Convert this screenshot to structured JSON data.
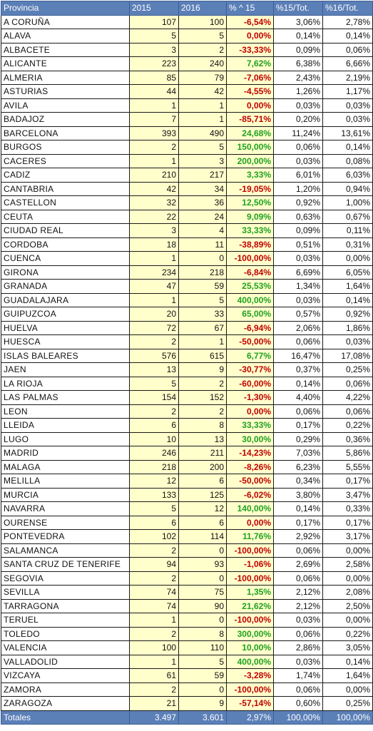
{
  "headers": [
    "Provincia",
    "2015",
    "2016",
    "% ^ 15",
    "%15/Tot.",
    "%16/Tot."
  ],
  "rows": [
    {
      "p": "A CORUÑA",
      "y15": "107",
      "y16": "100",
      "pct": "-6,54%",
      "t15": "3,06%",
      "t16": "2,78%",
      "sign": "neg"
    },
    {
      "p": "ALAVA",
      "y15": "5",
      "y16": "5",
      "pct": "0,00%",
      "t15": "0,14%",
      "t16": "0,14%",
      "sign": "neg"
    },
    {
      "p": "ALBACETE",
      "y15": "3",
      "y16": "2",
      "pct": "-33,33%",
      "t15": "0,09%",
      "t16": "0,06%",
      "sign": "neg"
    },
    {
      "p": "ALICANTE",
      "y15": "223",
      "y16": "240",
      "pct": "7,62%",
      "t15": "6,38%",
      "t16": "6,66%",
      "sign": "pos"
    },
    {
      "p": "ALMERIA",
      "y15": "85",
      "y16": "79",
      "pct": "-7,06%",
      "t15": "2,43%",
      "t16": "2,19%",
      "sign": "neg"
    },
    {
      "p": "ASTURIAS",
      "y15": "44",
      "y16": "42",
      "pct": "-4,55%",
      "t15": "1,26%",
      "t16": "1,17%",
      "sign": "neg"
    },
    {
      "p": "AVILA",
      "y15": "1",
      "y16": "1",
      "pct": "0,00%",
      "t15": "0,03%",
      "t16": "0,03%",
      "sign": "neg"
    },
    {
      "p": "BADAJOZ",
      "y15": "7",
      "y16": "1",
      "pct": "-85,71%",
      "t15": "0,20%",
      "t16": "0,03%",
      "sign": "neg"
    },
    {
      "p": "BARCELONA",
      "y15": "393",
      "y16": "490",
      "pct": "24,68%",
      "t15": "11,24%",
      "t16": "13,61%",
      "sign": "pos"
    },
    {
      "p": "BURGOS",
      "y15": "2",
      "y16": "5",
      "pct": "150,00%",
      "t15": "0,06%",
      "t16": "0,14%",
      "sign": "pos"
    },
    {
      "p": "CACERES",
      "y15": "1",
      "y16": "3",
      "pct": "200,00%",
      "t15": "0,03%",
      "t16": "0,08%",
      "sign": "pos"
    },
    {
      "p": "CADIZ",
      "y15": "210",
      "y16": "217",
      "pct": "3,33%",
      "t15": "6,01%",
      "t16": "6,03%",
      "sign": "pos"
    },
    {
      "p": "CANTABRIA",
      "y15": "42",
      "y16": "34",
      "pct": "-19,05%",
      "t15": "1,20%",
      "t16": "0,94%",
      "sign": "neg"
    },
    {
      "p": "CASTELLON",
      "y15": "32",
      "y16": "36",
      "pct": "12,50%",
      "t15": "0,92%",
      "t16": "1,00%",
      "sign": "pos"
    },
    {
      "p": "CEUTA",
      "y15": "22",
      "y16": "24",
      "pct": "9,09%",
      "t15": "0,63%",
      "t16": "0,67%",
      "sign": "pos"
    },
    {
      "p": "CIUDAD REAL",
      "y15": "3",
      "y16": "4",
      "pct": "33,33%",
      "t15": "0,09%",
      "t16": "0,11%",
      "sign": "pos"
    },
    {
      "p": "CORDOBA",
      "y15": "18",
      "y16": "11",
      "pct": "-38,89%",
      "t15": "0,51%",
      "t16": "0,31%",
      "sign": "neg"
    },
    {
      "p": "CUENCA",
      "y15": "1",
      "y16": "0",
      "pct": "-100,00%",
      "t15": "0,03%",
      "t16": "0,00%",
      "sign": "neg"
    },
    {
      "p": "GIRONA",
      "y15": "234",
      "y16": "218",
      "pct": "-6,84%",
      "t15": "6,69%",
      "t16": "6,05%",
      "sign": "neg"
    },
    {
      "p": "GRANADA",
      "y15": "47",
      "y16": "59",
      "pct": "25,53%",
      "t15": "1,34%",
      "t16": "1,64%",
      "sign": "pos"
    },
    {
      "p": "GUADALAJARA",
      "y15": "1",
      "y16": "5",
      "pct": "400,00%",
      "t15": "0,03%",
      "t16": "0,14%",
      "sign": "pos"
    },
    {
      "p": "GUIPUZCOA",
      "y15": "20",
      "y16": "33",
      "pct": "65,00%",
      "t15": "0,57%",
      "t16": "0,92%",
      "sign": "pos"
    },
    {
      "p": "HUELVA",
      "y15": "72",
      "y16": "67",
      "pct": "-6,94%",
      "t15": "2,06%",
      "t16": "1,86%",
      "sign": "neg"
    },
    {
      "p": "HUESCA",
      "y15": "2",
      "y16": "1",
      "pct": "-50,00%",
      "t15": "0,06%",
      "t16": "0,03%",
      "sign": "neg"
    },
    {
      "p": "ISLAS BALEARES",
      "y15": "576",
      "y16": "615",
      "pct": "6,77%",
      "t15": "16,47%",
      "t16": "17,08%",
      "sign": "pos"
    },
    {
      "p": "JAEN",
      "y15": "13",
      "y16": "9",
      "pct": "-30,77%",
      "t15": "0,37%",
      "t16": "0,25%",
      "sign": "neg"
    },
    {
      "p": "LA RIOJA",
      "y15": "5",
      "y16": "2",
      "pct": "-60,00%",
      "t15": "0,14%",
      "t16": "0,06%",
      "sign": "neg"
    },
    {
      "p": "LAS PALMAS",
      "y15": "154",
      "y16": "152",
      "pct": "-1,30%",
      "t15": "4,40%",
      "t16": "4,22%",
      "sign": "neg"
    },
    {
      "p": "LEON",
      "y15": "2",
      "y16": "2",
      "pct": "0,00%",
      "t15": "0,06%",
      "t16": "0,06%",
      "sign": "neg"
    },
    {
      "p": "LLEIDA",
      "y15": "6",
      "y16": "8",
      "pct": "33,33%",
      "t15": "0,17%",
      "t16": "0,22%",
      "sign": "pos"
    },
    {
      "p": "LUGO",
      "y15": "10",
      "y16": "13",
      "pct": "30,00%",
      "t15": "0,29%",
      "t16": "0,36%",
      "sign": "pos"
    },
    {
      "p": "MADRID",
      "y15": "246",
      "y16": "211",
      "pct": "-14,23%",
      "t15": "7,03%",
      "t16": "5,86%",
      "sign": "neg"
    },
    {
      "p": "MALAGA",
      "y15": "218",
      "y16": "200",
      "pct": "-8,26%",
      "t15": "6,23%",
      "t16": "5,55%",
      "sign": "neg"
    },
    {
      "p": "MELILLA",
      "y15": "12",
      "y16": "6",
      "pct": "-50,00%",
      "t15": "0,34%",
      "t16": "0,17%",
      "sign": "neg"
    },
    {
      "p": "MURCIA",
      "y15": "133",
      "y16": "125",
      "pct": "-6,02%",
      "t15": "3,80%",
      "t16": "3,47%",
      "sign": "neg"
    },
    {
      "p": "NAVARRA",
      "y15": "5",
      "y16": "12",
      "pct": "140,00%",
      "t15": "0,14%",
      "t16": "0,33%",
      "sign": "pos"
    },
    {
      "p": "OURENSE",
      "y15": "6",
      "y16": "6",
      "pct": "0,00%",
      "t15": "0,17%",
      "t16": "0,17%",
      "sign": "neg"
    },
    {
      "p": "PONTEVEDRA",
      "y15": "102",
      "y16": "114",
      "pct": "11,76%",
      "t15": "2,92%",
      "t16": "3,17%",
      "sign": "pos"
    },
    {
      "p": "SALAMANCA",
      "y15": "2",
      "y16": "0",
      "pct": "-100,00%",
      "t15": "0,06%",
      "t16": "0,00%",
      "sign": "neg"
    },
    {
      "p": "SANTA CRUZ DE TENERIFE",
      "y15": "94",
      "y16": "93",
      "pct": "-1,06%",
      "t15": "2,69%",
      "t16": "2,58%",
      "sign": "neg"
    },
    {
      "p": "SEGOVIA",
      "y15": "2",
      "y16": "0",
      "pct": "-100,00%",
      "t15": "0,06%",
      "t16": "0,00%",
      "sign": "neg"
    },
    {
      "p": "SEVILLA",
      "y15": "74",
      "y16": "75",
      "pct": "1,35%",
      "t15": "2,12%",
      "t16": "2,08%",
      "sign": "pos"
    },
    {
      "p": "TARRAGONA",
      "y15": "74",
      "y16": "90",
      "pct": "21,62%",
      "t15": "2,12%",
      "t16": "2,50%",
      "sign": "pos"
    },
    {
      "p": "TERUEL",
      "y15": "1",
      "y16": "0",
      "pct": "-100,00%",
      "t15": "0,03%",
      "t16": "0,00%",
      "sign": "neg"
    },
    {
      "p": "TOLEDO",
      "y15": "2",
      "y16": "8",
      "pct": "300,00%",
      "t15": "0,06%",
      "t16": "0,22%",
      "sign": "pos"
    },
    {
      "p": "VALENCIA",
      "y15": "100",
      "y16": "110",
      "pct": "10,00%",
      "t15": "2,86%",
      "t16": "3,05%",
      "sign": "pos"
    },
    {
      "p": "VALLADOLID",
      "y15": "1",
      "y16": "5",
      "pct": "400,00%",
      "t15": "0,03%",
      "t16": "0,14%",
      "sign": "pos"
    },
    {
      "p": "VIZCAYA",
      "y15": "61",
      "y16": "59",
      "pct": "-3,28%",
      "t15": "1,74%",
      "t16": "1,64%",
      "sign": "neg"
    },
    {
      "p": "ZAMORA",
      "y15": "2",
      "y16": "0",
      "pct": "-100,00%",
      "t15": "0,06%",
      "t16": "0,00%",
      "sign": "neg"
    },
    {
      "p": "ZARAGOZA",
      "y15": "21",
      "y16": "9",
      "pct": "-57,14%",
      "t15": "0,60%",
      "t16": "0,25%",
      "sign": "neg"
    }
  ],
  "totals": {
    "label": "Totales",
    "y15": "3.497",
    "y16": "3.601",
    "pct": "2,97%",
    "t15": "100,00%",
    "t16": "100,00%"
  },
  "colors": {
    "header_bg": "#5b7fb7",
    "value_bg": "#ffffcc",
    "negative": "#c00000",
    "positive": "#1fa11f"
  }
}
